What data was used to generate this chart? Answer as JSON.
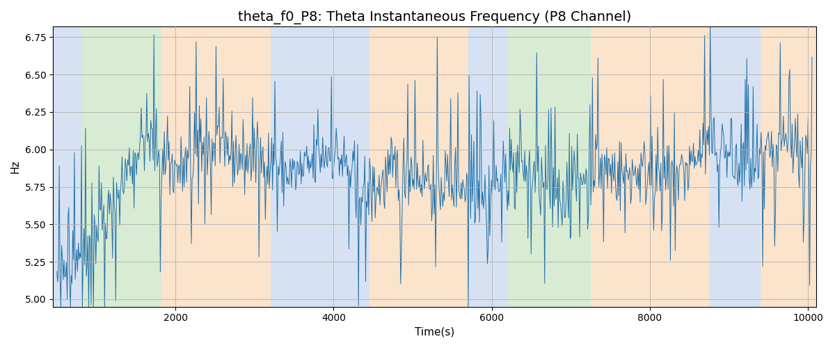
{
  "title": "theta_f0_P8: Theta Instantaneous Frequency (P8 Channel)",
  "xlabel": "Time(s)",
  "ylabel": "Hz",
  "ylim": [
    4.95,
    6.82
  ],
  "xlim": [
    450,
    10100
  ],
  "line_color": "#1f6fa8",
  "line_width": 0.7,
  "background_color": "#ffffff",
  "grid_color": "#b0b0b0",
  "seed": 42,
  "n_points": 950,
  "x_start": 500,
  "x_end": 10050,
  "regions": [
    {
      "start": 450,
      "end": 820,
      "color": "#aec6e8",
      "alpha": 0.5
    },
    {
      "start": 820,
      "end": 1820,
      "color": "#b2d8a8",
      "alpha": 0.5
    },
    {
      "start": 1820,
      "end": 3200,
      "color": "#f8c89a",
      "alpha": 0.5
    },
    {
      "start": 3200,
      "end": 4450,
      "color": "#aec6e8",
      "alpha": 0.5
    },
    {
      "start": 4450,
      "end": 5700,
      "color": "#f8c89a",
      "alpha": 0.5
    },
    {
      "start": 5700,
      "end": 6200,
      "color": "#aec6e8",
      "alpha": 0.5
    },
    {
      "start": 6200,
      "end": 7250,
      "color": "#b2d8a8",
      "alpha": 0.5
    },
    {
      "start": 7250,
      "end": 8750,
      "color": "#f8c89a",
      "alpha": 0.5
    },
    {
      "start": 8750,
      "end": 9400,
      "color": "#aec6e8",
      "alpha": 0.5
    },
    {
      "start": 9400,
      "end": 10100,
      "color": "#f8c89a",
      "alpha": 0.5
    }
  ],
  "title_fontsize": 14,
  "label_fontsize": 11,
  "tick_fontsize": 10
}
